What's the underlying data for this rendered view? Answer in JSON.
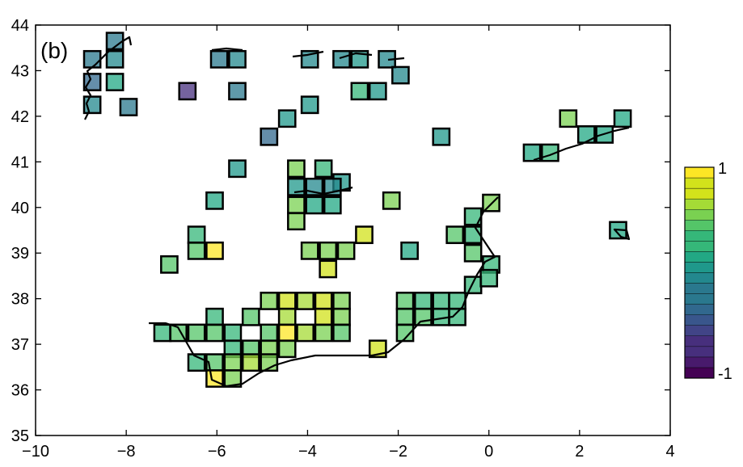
{
  "panel_label": "(b)",
  "chart_data": {
    "type": "heatmap",
    "title": "",
    "xlabel": "",
    "ylabel": "",
    "xlim": [
      -10,
      4
    ],
    "ylim": [
      35,
      44
    ],
    "xticks": [
      -10,
      -8,
      -6,
      -4,
      -2,
      0,
      2,
      4
    ],
    "xtick_labels": [
      "−10",
      "−8",
      "−6",
      "−4",
      "−2",
      "0",
      "2",
      "4"
    ],
    "yticks": [
      35,
      36,
      37,
      38,
      39,
      40,
      41,
      42,
      43,
      44
    ],
    "ytick_labels": [
      "35",
      "36",
      "37",
      "38",
      "39",
      "40",
      "41",
      "42",
      "43",
      "44"
    ],
    "grid": false,
    "cell_size_deg": 0.5,
    "colorbar": {
      "min": -1,
      "max": 1,
      "levels": 20,
      "tick_labels": [
        "1",
        "-1"
      ],
      "colormap": "viridis",
      "colors": [
        "#440154",
        "#481a6c",
        "#472f7d",
        "#414487",
        "#39568c",
        "#31688e",
        "#2a788e",
        "#23888e",
        "#1f988b",
        "#22a884",
        "#35b779",
        "#54c568",
        "#7ad151",
        "#a5db36",
        "#d2e21b",
        "#fde725"
      ]
    },
    "cells": [
      {
        "lon": -8.75,
        "lat": 43.25,
        "v": -0.15
      },
      {
        "lon": -8.25,
        "lat": 43.25,
        "v": -0.05
      },
      {
        "lon": -8.25,
        "lat": 43.65,
        "v": -0.2
      },
      {
        "lon": -8.75,
        "lat": 42.75,
        "v": -0.35
      },
      {
        "lon": -8.25,
        "lat": 42.75,
        "v": 0.2
      },
      {
        "lon": -8.75,
        "lat": 42.25,
        "v": -0.1
      },
      {
        "lon": -7.95,
        "lat": 42.2,
        "v": -0.2
      },
      {
        "lon": -6.65,
        "lat": 42.55,
        "v": -0.75
      },
      {
        "lon": -5.95,
        "lat": 43.25,
        "v": -0.15
      },
      {
        "lon": -5.55,
        "lat": 43.25,
        "v": -0.05
      },
      {
        "lon": -5.55,
        "lat": 42.55,
        "v": -0.25
      },
      {
        "lon": -4.45,
        "lat": 41.95,
        "v": 0.05
      },
      {
        "lon": -4.85,
        "lat": 41.55,
        "v": -0.3
      },
      {
        "lon": -3.95,
        "lat": 43.25,
        "v": -0.05
      },
      {
        "lon": -3.95,
        "lat": 42.25,
        "v": 0.05
      },
      {
        "lon": -3.25,
        "lat": 43.25,
        "v": -0.1
      },
      {
        "lon": -2.85,
        "lat": 43.25,
        "v": 0.1
      },
      {
        "lon": -2.85,
        "lat": 42.55,
        "v": 0.35
      },
      {
        "lon": -2.45,
        "lat": 42.55,
        "v": 0.1
      },
      {
        "lon": -2.25,
        "lat": 43.25,
        "v": -0.05
      },
      {
        "lon": -1.95,
        "lat": 42.9,
        "v": -0.1
      },
      {
        "lon": -1.05,
        "lat": 41.55,
        "v": 0.05
      },
      {
        "lon": 1.75,
        "lat": 41.95,
        "v": 0.55
      },
      {
        "lon": 2.15,
        "lat": 41.6,
        "v": 0.15
      },
      {
        "lon": 2.55,
        "lat": 41.6,
        "v": 0.15
      },
      {
        "lon": 2.95,
        "lat": 41.95,
        "v": 0.15
      },
      {
        "lon": 0.95,
        "lat": 41.2,
        "v": 0.2
      },
      {
        "lon": 1.35,
        "lat": 41.2,
        "v": 0.35
      },
      {
        "lon": -5.55,
        "lat": 40.85,
        "v": 0.05
      },
      {
        "lon": -6.05,
        "lat": 40.15,
        "v": 0.15
      },
      {
        "lon": -4.25,
        "lat": 40.85,
        "v": 0.5
      },
      {
        "lon": -3.65,
        "lat": 40.85,
        "v": 0.35
      },
      {
        "lon": -3.25,
        "lat": 40.55,
        "v": 0.1
      },
      {
        "lon": -4.25,
        "lat": 40.45,
        "v": 0.05
      },
      {
        "lon": -3.85,
        "lat": 40.45,
        "v": -0.05
      },
      {
        "lon": -3.45,
        "lat": 40.45,
        "v": -0.05
      },
      {
        "lon": -4.25,
        "lat": 40.05,
        "v": 0.5
      },
      {
        "lon": -3.85,
        "lat": 40.05,
        "v": 0.15
      },
      {
        "lon": -3.45,
        "lat": 40.05,
        "v": 0.15
      },
      {
        "lon": -4.25,
        "lat": 39.7,
        "v": 0.6
      },
      {
        "lon": -2.15,
        "lat": 40.15,
        "v": 0.6
      },
      {
        "lon": 0.05,
        "lat": 40.1,
        "v": 0.55
      },
      {
        "lon": -0.35,
        "lat": 39.8,
        "v": 0.3
      },
      {
        "lon": -0.75,
        "lat": 39.4,
        "v": 0.45
      },
      {
        "lon": -0.35,
        "lat": 39.4,
        "v": 0.35
      },
      {
        "lon": -0.35,
        "lat": 39.0,
        "v": 0.45
      },
      {
        "lon": 0.05,
        "lat": 38.75,
        "v": 0.3
      },
      {
        "lon": 2.85,
        "lat": 39.5,
        "v": 0.15
      },
      {
        "lon": -1.75,
        "lat": 39.05,
        "v": 0.15
      },
      {
        "lon": -2.75,
        "lat": 39.4,
        "v": 0.85
      },
      {
        "lon": -3.95,
        "lat": 39.05,
        "v": 0.55
      },
      {
        "lon": -3.55,
        "lat": 39.05,
        "v": 0.6
      },
      {
        "lon": -3.15,
        "lat": 39.05,
        "v": 0.6
      },
      {
        "lon": -3.55,
        "lat": 38.65,
        "v": 0.85
      },
      {
        "lon": -6.45,
        "lat": 39.4,
        "v": 0.35
      },
      {
        "lon": -6.45,
        "lat": 39.05,
        "v": 0.45
      },
      {
        "lon": -6.05,
        "lat": 39.05,
        "v": 0.9
      },
      {
        "lon": -7.05,
        "lat": 38.75,
        "v": 0.45
      },
      {
        "lon": -4.85,
        "lat": 37.95,
        "v": 0.5
      },
      {
        "lon": -4.45,
        "lat": 37.95,
        "v": 0.85
      },
      {
        "lon": -4.05,
        "lat": 37.95,
        "v": 0.7
      },
      {
        "lon": -3.65,
        "lat": 37.95,
        "v": 0.8
      },
      {
        "lon": -3.25,
        "lat": 37.95,
        "v": 0.5
      },
      {
        "lon": -1.85,
        "lat": 37.95,
        "v": 0.4
      },
      {
        "lon": -1.45,
        "lat": 37.95,
        "v": 0.35
      },
      {
        "lon": -1.05,
        "lat": 37.95,
        "v": 0.35
      },
      {
        "lon": -0.7,
        "lat": 37.95,
        "v": 0.3
      },
      {
        "lon": -0.35,
        "lat": 38.3,
        "v": 0.3
      },
      {
        "lon": 0.0,
        "lat": 38.45,
        "v": 0.35
      },
      {
        "lon": -6.05,
        "lat": 37.6,
        "v": 0.3
      },
      {
        "lon": -5.25,
        "lat": 37.6,
        "v": 0.4
      },
      {
        "lon": -4.45,
        "lat": 37.6,
        "v": 0.65
      },
      {
        "lon": -3.65,
        "lat": 37.6,
        "v": 0.85
      },
      {
        "lon": -3.25,
        "lat": 37.6,
        "v": 0.6
      },
      {
        "lon": -1.85,
        "lat": 37.6,
        "v": 0.45
      },
      {
        "lon": -1.45,
        "lat": 37.6,
        "v": 0.4
      },
      {
        "lon": -1.05,
        "lat": 37.6,
        "v": 0.35
      },
      {
        "lon": -0.7,
        "lat": 37.6,
        "v": 0.35
      },
      {
        "lon": -7.2,
        "lat": 37.25,
        "v": 0.3
      },
      {
        "lon": -6.85,
        "lat": 37.25,
        "v": 0.45
      },
      {
        "lon": -6.45,
        "lat": 37.25,
        "v": 0.45
      },
      {
        "lon": -6.05,
        "lat": 37.25,
        "v": 0.4
      },
      {
        "lon": -5.65,
        "lat": 37.25,
        "v": 0.35
      },
      {
        "lon": -4.85,
        "lat": 37.25,
        "v": 0.4
      },
      {
        "lon": -4.45,
        "lat": 37.25,
        "v": 0.9
      },
      {
        "lon": -4.05,
        "lat": 37.25,
        "v": 0.7
      },
      {
        "lon": -3.65,
        "lat": 37.25,
        "v": 0.6
      },
      {
        "lon": -3.25,
        "lat": 37.25,
        "v": 0.45
      },
      {
        "lon": -1.85,
        "lat": 37.25,
        "v": 0.4
      },
      {
        "lon": -5.65,
        "lat": 36.9,
        "v": 0.35
      },
      {
        "lon": -5.25,
        "lat": 36.9,
        "v": 0.45
      },
      {
        "lon": -4.85,
        "lat": 36.9,
        "v": 0.55
      },
      {
        "lon": -4.45,
        "lat": 36.9,
        "v": 0.5
      },
      {
        "lon": -2.45,
        "lat": 36.9,
        "v": 0.85
      },
      {
        "lon": -6.45,
        "lat": 36.6,
        "v": 0.25
      },
      {
        "lon": -6.05,
        "lat": 36.6,
        "v": 0.45
      },
      {
        "lon": -5.65,
        "lat": 36.6,
        "v": 0.6
      },
      {
        "lon": -5.25,
        "lat": 36.6,
        "v": 0.65
      },
      {
        "lon": -4.85,
        "lat": 36.6,
        "v": 0.55
      },
      {
        "lon": -6.05,
        "lat": 36.25,
        "v": 0.9
      },
      {
        "lon": -5.65,
        "lat": 36.25,
        "v": 0.55
      }
    ]
  }
}
